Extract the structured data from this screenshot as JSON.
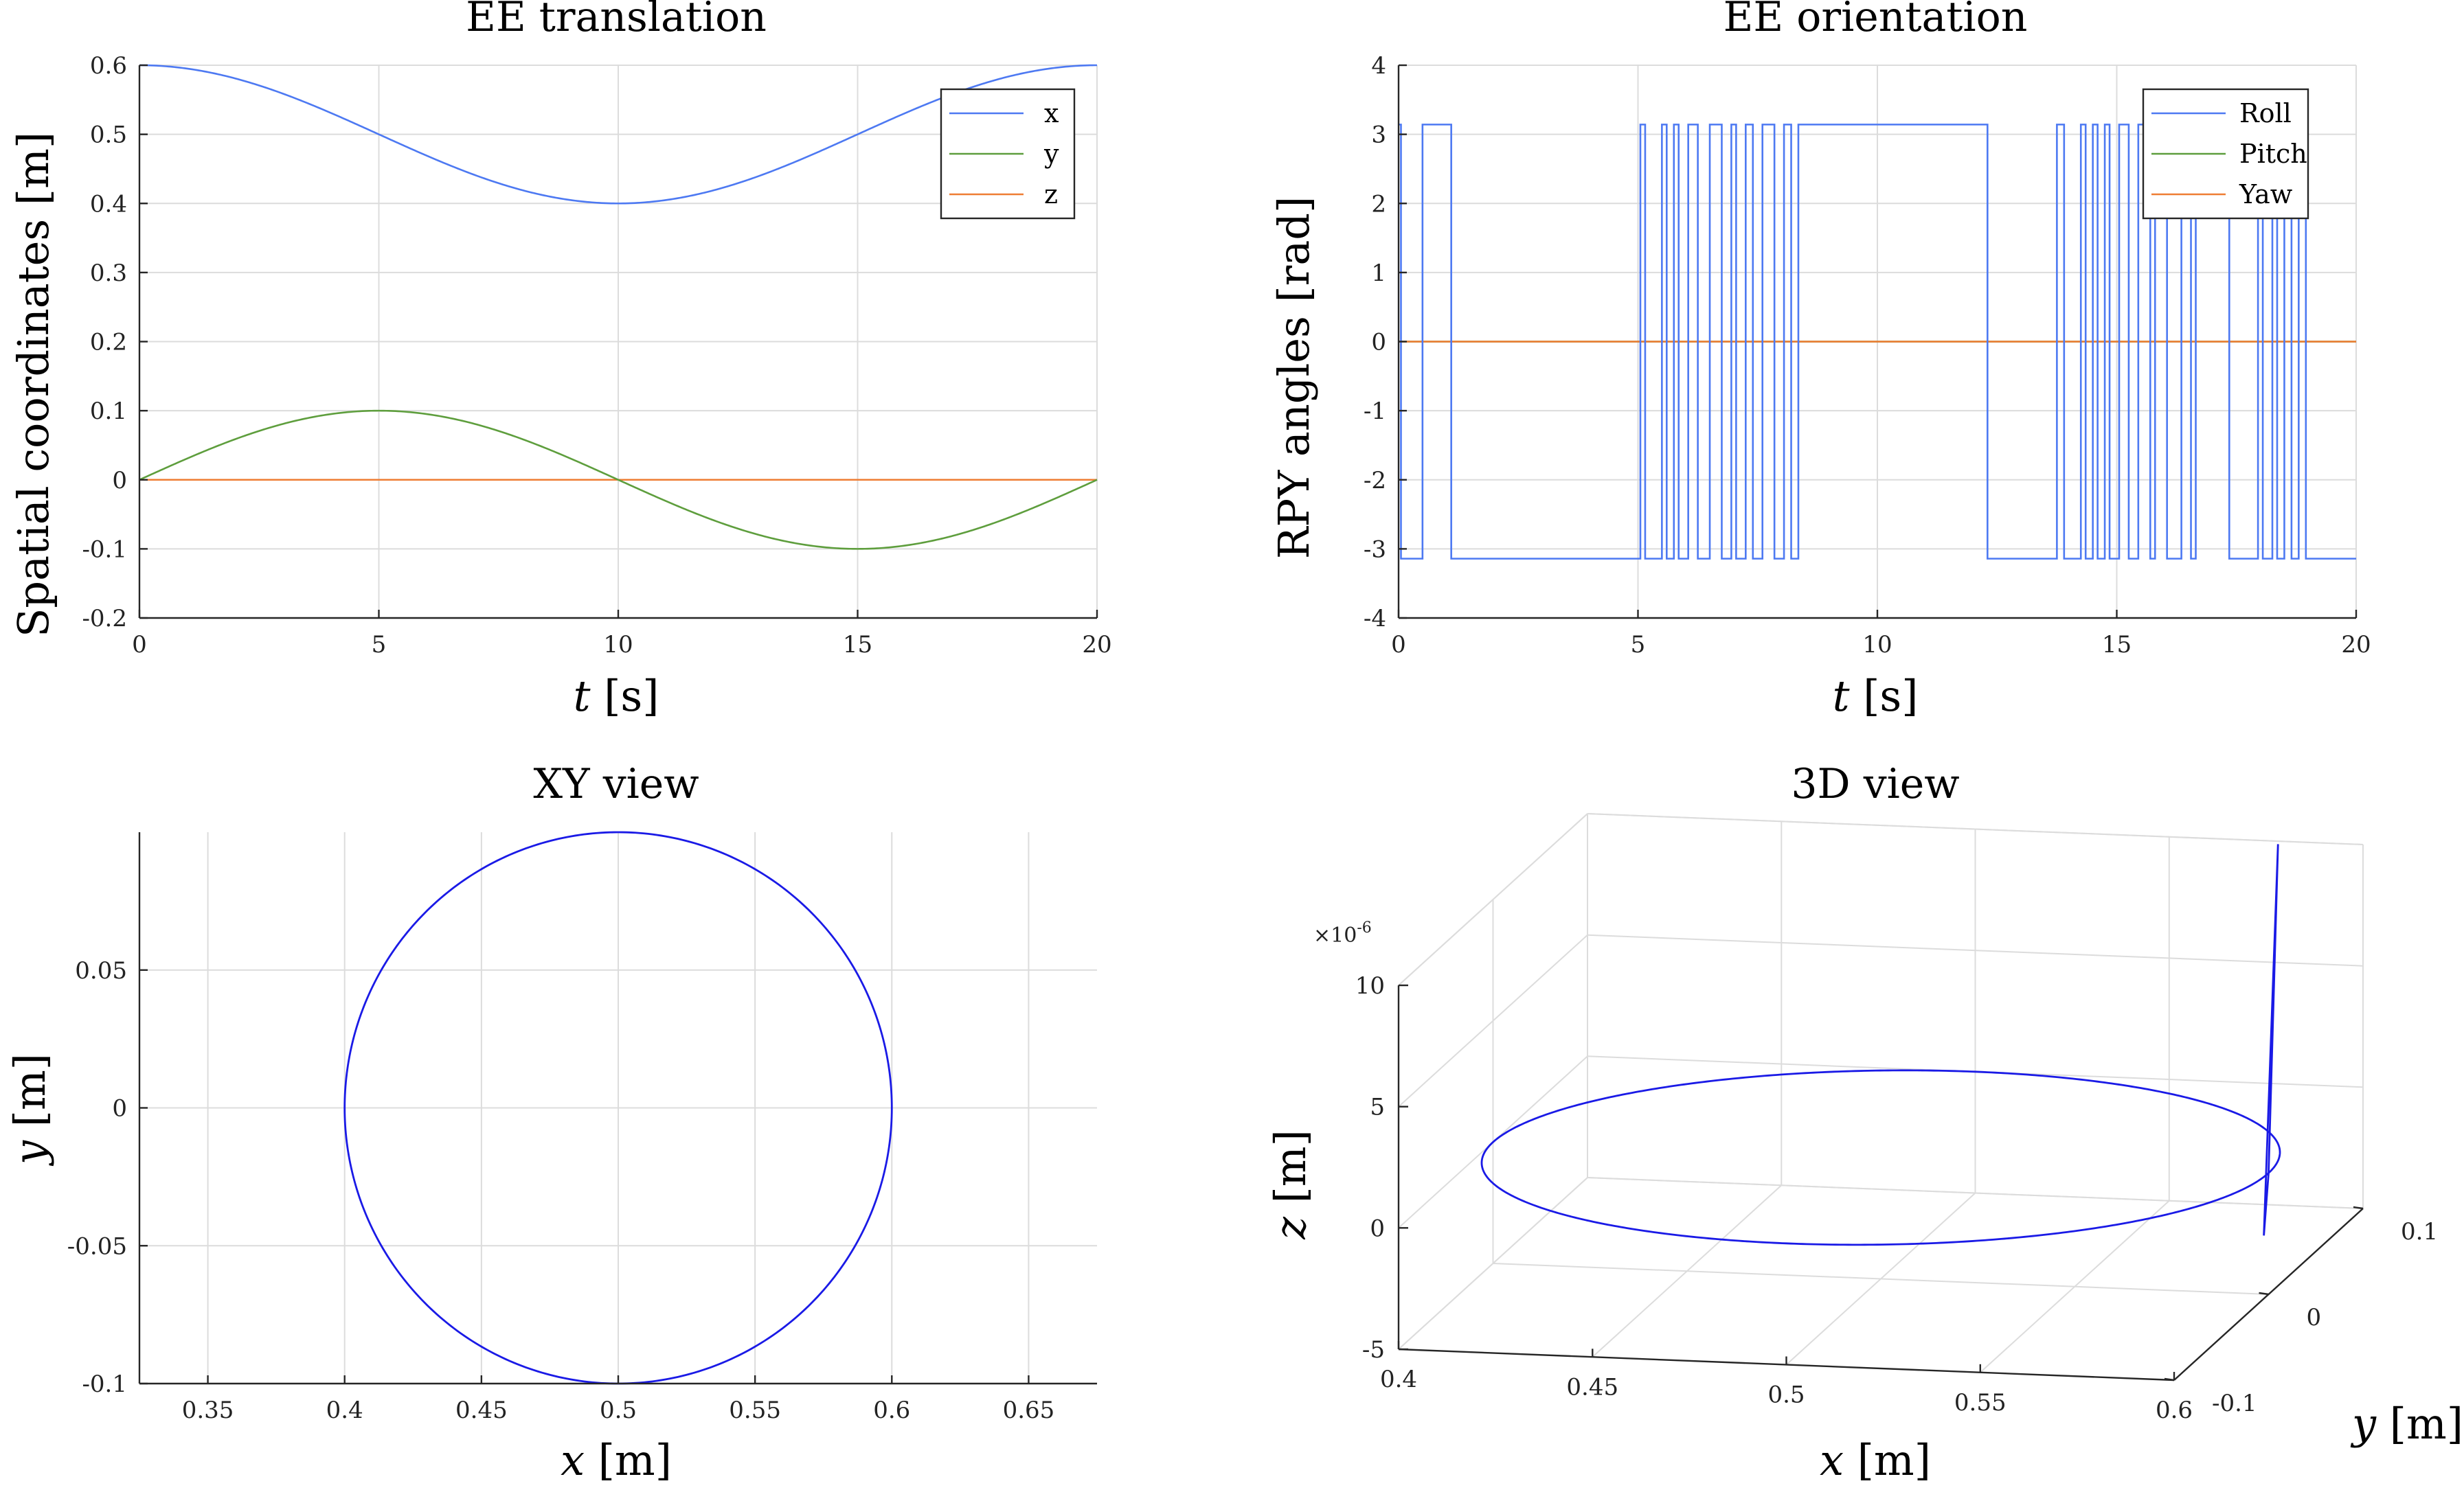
{
  "chart_data": [
    {
      "id": "tl",
      "type": "line",
      "title": "EE translation",
      "xlabel": {
        "sym": "t",
        "unit": " [s]"
      },
      "ylabel": "Spatial coordinates [m]",
      "xlim": [
        0,
        20
      ],
      "ylim": [
        -0.2,
        0.6
      ],
      "xticks": [
        0,
        5,
        10,
        15,
        20
      ],
      "yticks": [
        -0.2,
        -0.1,
        0,
        0.1,
        0.2,
        0.3,
        0.4,
        0.5,
        0.6
      ],
      "grid": true,
      "legend": "top-right",
      "series": [
        {
          "name": "x",
          "color": "#4d79f2",
          "func": "0.5+0.1*cos(2*pi*t/20)"
        },
        {
          "name": "y",
          "color": "#5e9e3d",
          "func": "0.1*sin(2*pi*t/20)"
        },
        {
          "name": "z",
          "color": "#ee7d33",
          "func": "0"
        }
      ]
    },
    {
      "id": "tr",
      "type": "line",
      "title": "EE orientation",
      "xlabel": {
        "sym": "t",
        "unit": " [s]"
      },
      "ylabel": "RPY angles [rad]",
      "xlim": [
        0,
        20
      ],
      "ylim": [
        -4,
        4
      ],
      "xticks": [
        0,
        5,
        10,
        15,
        20
      ],
      "yticks": [
        -4,
        -3,
        -2,
        -1,
        0,
        1,
        2,
        3,
        4
      ],
      "grid": true,
      "legend": "top-right",
      "series": [
        {
          "name": "Roll",
          "color": "#4d79f2",
          "kind": "step",
          "toggles": [
            0.05,
            0.5,
            1.1,
            5.05,
            5.15,
            5.5,
            5.6,
            5.75,
            5.85,
            6.05,
            6.25,
            6.5,
            6.75,
            6.95,
            7.05,
            7.25,
            7.4,
            7.6,
            7.85,
            8.05,
            8.2,
            8.35,
            12.3,
            13.75,
            13.9,
            14.25,
            14.35,
            14.5,
            14.6,
            14.75,
            14.85,
            15.05,
            15.25,
            15.45,
            15.7,
            15.8,
            16.05,
            16.35,
            16.55,
            16.65,
            17.35,
            17.95,
            18.05,
            18.25,
            18.35,
            18.5,
            18.65,
            18.8,
            18.95
          ],
          "start": 3.1416
        },
        {
          "name": "Pitch",
          "color": "#5e9e3d",
          "func": "0"
        },
        {
          "name": "Yaw",
          "color": "#ee7d33",
          "func": "0"
        }
      ]
    },
    {
      "id": "bl",
      "type": "line",
      "title": "XY view",
      "xlabel": {
        "sym": "x",
        "unit": " [m]"
      },
      "ylabel": {
        "sym": "y",
        "unit": " [m]"
      },
      "xlim": [
        0.325,
        0.675
      ],
      "ylim": [
        -0.1,
        0.1
      ],
      "xticks": [
        0.35,
        0.4,
        0.45,
        0.5,
        0.55,
        0.6,
        0.65
      ],
      "yticks": [
        -0.1,
        -0.05,
        0,
        0.05
      ],
      "grid": true,
      "series": [
        {
          "name": "",
          "color": "#1a1ae6",
          "func": "circle center (0.5, 0) radius 0.1"
        }
      ]
    },
    {
      "id": "br",
      "type": "line",
      "title": "3D view",
      "xlabel": {
        "sym": "x",
        "unit": " [m]"
      },
      "ylabel": {
        "sym": "y",
        "unit": " [m]"
      },
      "zlabel": {
        "sym": "z",
        "unit": " [m]"
      },
      "xlim": [
        0.4,
        0.6
      ],
      "ylim": [
        -0.1,
        0.1
      ],
      "zlim": [
        -5,
        10
      ],
      "xticks": [
        0.4,
        0.45,
        0.5,
        0.55,
        0.6
      ],
      "yticks": [
        -0.1,
        0,
        0.1
      ],
      "zticks": [
        -5,
        0,
        5,
        10
      ],
      "zscale_label": "×10",
      "zscale_exp": "-6",
      "grid": true,
      "series": [
        {
          "name": "",
          "color": "#1a1ae6",
          "func": "circle center (0.5, 0) radius 0.1, z ≈ 0 with spike near x = 0.6 up to about 13e-6"
        }
      ]
    }
  ]
}
